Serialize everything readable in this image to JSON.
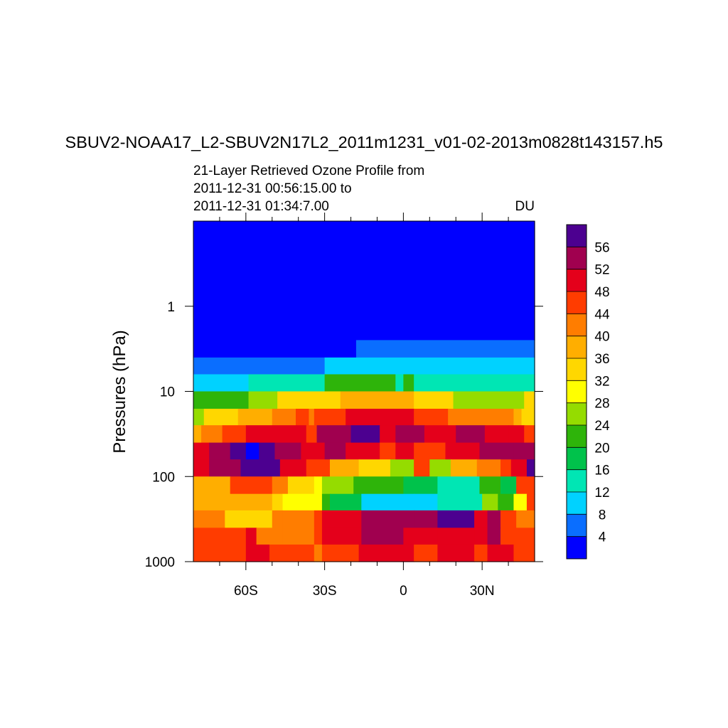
{
  "chart_data": {
    "type": "heatmap",
    "title": "SBUV2-NOAA17_L2-SBUV2N17L2_2011m1231_v01-02-2013m0828t143157.h5",
    "subtitle_lines": [
      "21-Layer Retrieved Ozone Profile from",
      "2011-12-31 00:56:15.00 to",
      "2011-12-31 01:34:7.00"
    ],
    "units": "DU",
    "ylabel": "Pressures (hPa)",
    "y_scale": "log",
    "y_range_hPa": [
      1000,
      0.1
    ],
    "y_ticks": [
      {
        "value": 1,
        "label": "1"
      },
      {
        "value": 10,
        "label": "10"
      },
      {
        "value": 100,
        "label": "100"
      },
      {
        "value": 1000,
        "label": "1000"
      }
    ],
    "x_range_deg": [
      -80,
      50
    ],
    "x_ticks": [
      {
        "value": -60,
        "label": "60S"
      },
      {
        "value": -30,
        "label": "30S"
      },
      {
        "value": 0,
        "label": "0"
      },
      {
        "value": 30,
        "label": "30N"
      }
    ],
    "x_minor_ticks": [
      -70,
      -50,
      -40,
      -20,
      -10,
      10,
      20,
      40
    ],
    "colorbar": {
      "labels": [
        "56",
        "52",
        "48",
        "44",
        "40",
        "36",
        "32",
        "28",
        "24",
        "20",
        "16",
        "12",
        "8",
        "4"
      ],
      "colors": [
        "#4c0090",
        "#a0004f",
        "#e4001b",
        "#ff3c00",
        "#ff7d00",
        "#ffae00",
        "#ffd700",
        "#ffff00",
        "#95dc00",
        "#2eb40a",
        "#00c24b",
        "#00e6b4",
        "#00d2ff",
        "#0a6eff",
        "#0000ff"
      ]
    },
    "layer_edges_hPa": [
      0.1,
      2.5,
      4.0,
      6.3,
      10,
      16,
      25,
      40,
      63,
      100,
      160,
      250,
      400,
      630,
      1000
    ],
    "bands": [
      [
        [
          -80,
          50,
          0
        ]
      ],
      [
        [
          -80,
          -18,
          0
        ],
        [
          -18,
          50,
          1
        ]
      ],
      [
        [
          -80,
          -30,
          1
        ],
        [
          -30,
          50,
          2
        ]
      ],
      [
        [
          -80,
          -59,
          2
        ],
        [
          -59,
          -30,
          3
        ],
        [
          -30,
          -3,
          5
        ],
        [
          -3,
          0,
          3
        ],
        [
          0,
          4,
          5
        ],
        [
          4,
          10,
          3
        ],
        [
          10,
          50,
          3
        ]
      ],
      [
        [
          -80,
          -59,
          5
        ],
        [
          -59,
          -48,
          6
        ],
        [
          -48,
          -24,
          8
        ],
        [
          -24,
          4,
          9
        ],
        [
          4,
          19,
          8
        ],
        [
          19,
          46,
          6
        ],
        [
          46,
          50,
          8
        ]
      ],
      [
        [
          -80,
          -76,
          6
        ],
        [
          -76,
          -63,
          8
        ],
        [
          -63,
          -50,
          9
        ],
        [
          -50,
          -41,
          10
        ],
        [
          -41,
          -36,
          11
        ],
        [
          -36,
          -34,
          10
        ],
        [
          -34,
          -22,
          11
        ],
        [
          -22,
          4,
          12
        ],
        [
          4,
          17,
          11
        ],
        [
          17,
          42,
          10
        ],
        [
          42,
          45,
          9
        ],
        [
          45,
          50,
          8
        ]
      ],
      [
        [
          -80,
          -77,
          9
        ],
        [
          -77,
          -69,
          10
        ],
        [
          -69,
          -60,
          11
        ],
        [
          -60,
          -37,
          12
        ],
        [
          -37,
          -33,
          11
        ],
        [
          -33,
          -20,
          13
        ],
        [
          -20,
          -9,
          14
        ],
        [
          -9,
          -3,
          12
        ],
        [
          -3,
          8,
          13
        ],
        [
          8,
          20,
          12
        ],
        [
          20,
          31,
          13
        ],
        [
          31,
          40,
          12
        ],
        [
          40,
          46,
          12
        ],
        [
          46,
          50,
          11
        ]
      ],
      [
        [
          -80,
          -74,
          12
        ],
        [
          -74,
          -66,
          13
        ],
        [
          -66,
          -60,
          14
        ],
        [
          -60,
          -55,
          15
        ],
        [
          -55,
          -49,
          14
        ],
        [
          -49,
          -39,
          13
        ],
        [
          -39,
          -30,
          12
        ],
        [
          -30,
          -22,
          13
        ],
        [
          -22,
          -9,
          12
        ],
        [
          -9,
          -3,
          11
        ],
        [
          -3,
          4,
          12
        ],
        [
          4,
          16,
          11
        ],
        [
          16,
          29,
          12
        ],
        [
          29,
          42,
          13
        ],
        [
          42,
          50,
          13
        ]
      ],
      [
        [
          -80,
          -74,
          12
        ],
        [
          -74,
          -62,
          13
        ],
        [
          -62,
          -47,
          14
        ],
        [
          -47,
          -37,
          12
        ],
        [
          -37,
          -28,
          11
        ],
        [
          -28,
          -17,
          9
        ],
        [
          -17,
          -5,
          8
        ],
        [
          -5,
          4,
          6
        ],
        [
          4,
          10,
          11
        ],
        [
          10,
          18,
          6
        ],
        [
          18,
          28,
          9
        ],
        [
          28,
          37,
          10
        ],
        [
          37,
          41,
          11
        ],
        [
          41,
          47,
          12
        ],
        [
          47,
          50,
          14
        ]
      ],
      [
        [
          -80,
          -66,
          9
        ],
        [
          -66,
          -50,
          11
        ],
        [
          -50,
          -44,
          10
        ],
        [
          -44,
          -38,
          8
        ],
        [
          -38,
          -34,
          8
        ],
        [
          -34,
          -31,
          7
        ],
        [
          -31,
          -19,
          6
        ],
        [
          -19,
          0,
          5
        ],
        [
          0,
          13,
          4
        ],
        [
          13,
          29,
          3
        ],
        [
          29,
          37,
          5
        ],
        [
          37,
          43,
          4
        ],
        [
          43,
          50,
          11
        ]
      ],
      [
        [
          -80,
          -68,
          9
        ],
        [
          -68,
          -50,
          9
        ],
        [
          -50,
          -46,
          8
        ],
        [
          -46,
          -31,
          7
        ],
        [
          -31,
          -28,
          5
        ],
        [
          -28,
          -16,
          4
        ],
        [
          -16,
          4,
          2
        ],
        [
          4,
          13,
          2
        ],
        [
          13,
          30,
          3
        ],
        [
          30,
          36,
          6
        ],
        [
          36,
          42,
          5
        ],
        [
          42,
          47,
          7
        ],
        [
          47,
          50,
          11
        ]
      ],
      [
        [
          -80,
          -68,
          10
        ],
        [
          -68,
          -50,
          8
        ],
        [
          -50,
          -46,
          10
        ],
        [
          -46,
          -34,
          10
        ],
        [
          -34,
          -31,
          11
        ],
        [
          -31,
          -16,
          12
        ],
        [
          -16,
          4,
          13
        ],
        [
          4,
          13,
          13
        ],
        [
          13,
          27,
          14
        ],
        [
          27,
          32,
          12
        ],
        [
          32,
          37,
          13
        ],
        [
          37,
          43,
          11
        ],
        [
          43,
          50,
          10
        ]
      ],
      [
        [
          -80,
          -60,
          11
        ],
        [
          -60,
          -56,
          12
        ],
        [
          -56,
          -46,
          10
        ],
        [
          -46,
          -34,
          10
        ],
        [
          -34,
          -31,
          11
        ],
        [
          -31,
          -16,
          12
        ],
        [
          -16,
          0,
          13
        ],
        [
          0,
          13,
          12
        ],
        [
          13,
          27,
          12
        ],
        [
          27,
          32,
          12
        ],
        [
          32,
          37,
          13
        ],
        [
          37,
          43,
          11
        ],
        [
          43,
          50,
          11
        ]
      ],
      [
        [
          -80,
          -60,
          11
        ],
        [
          -60,
          -51,
          12
        ],
        [
          -51,
          -38,
          11
        ],
        [
          -38,
          -34,
          11
        ],
        [
          -34,
          -31,
          10
        ],
        [
          -31,
          -17,
          11
        ],
        [
          -17,
          4,
          12
        ],
        [
          4,
          13,
          11
        ],
        [
          13,
          27,
          12
        ],
        [
          27,
          32,
          11
        ],
        [
          32,
          42,
          12
        ],
        [
          42,
          50,
          11
        ]
      ]
    ]
  }
}
